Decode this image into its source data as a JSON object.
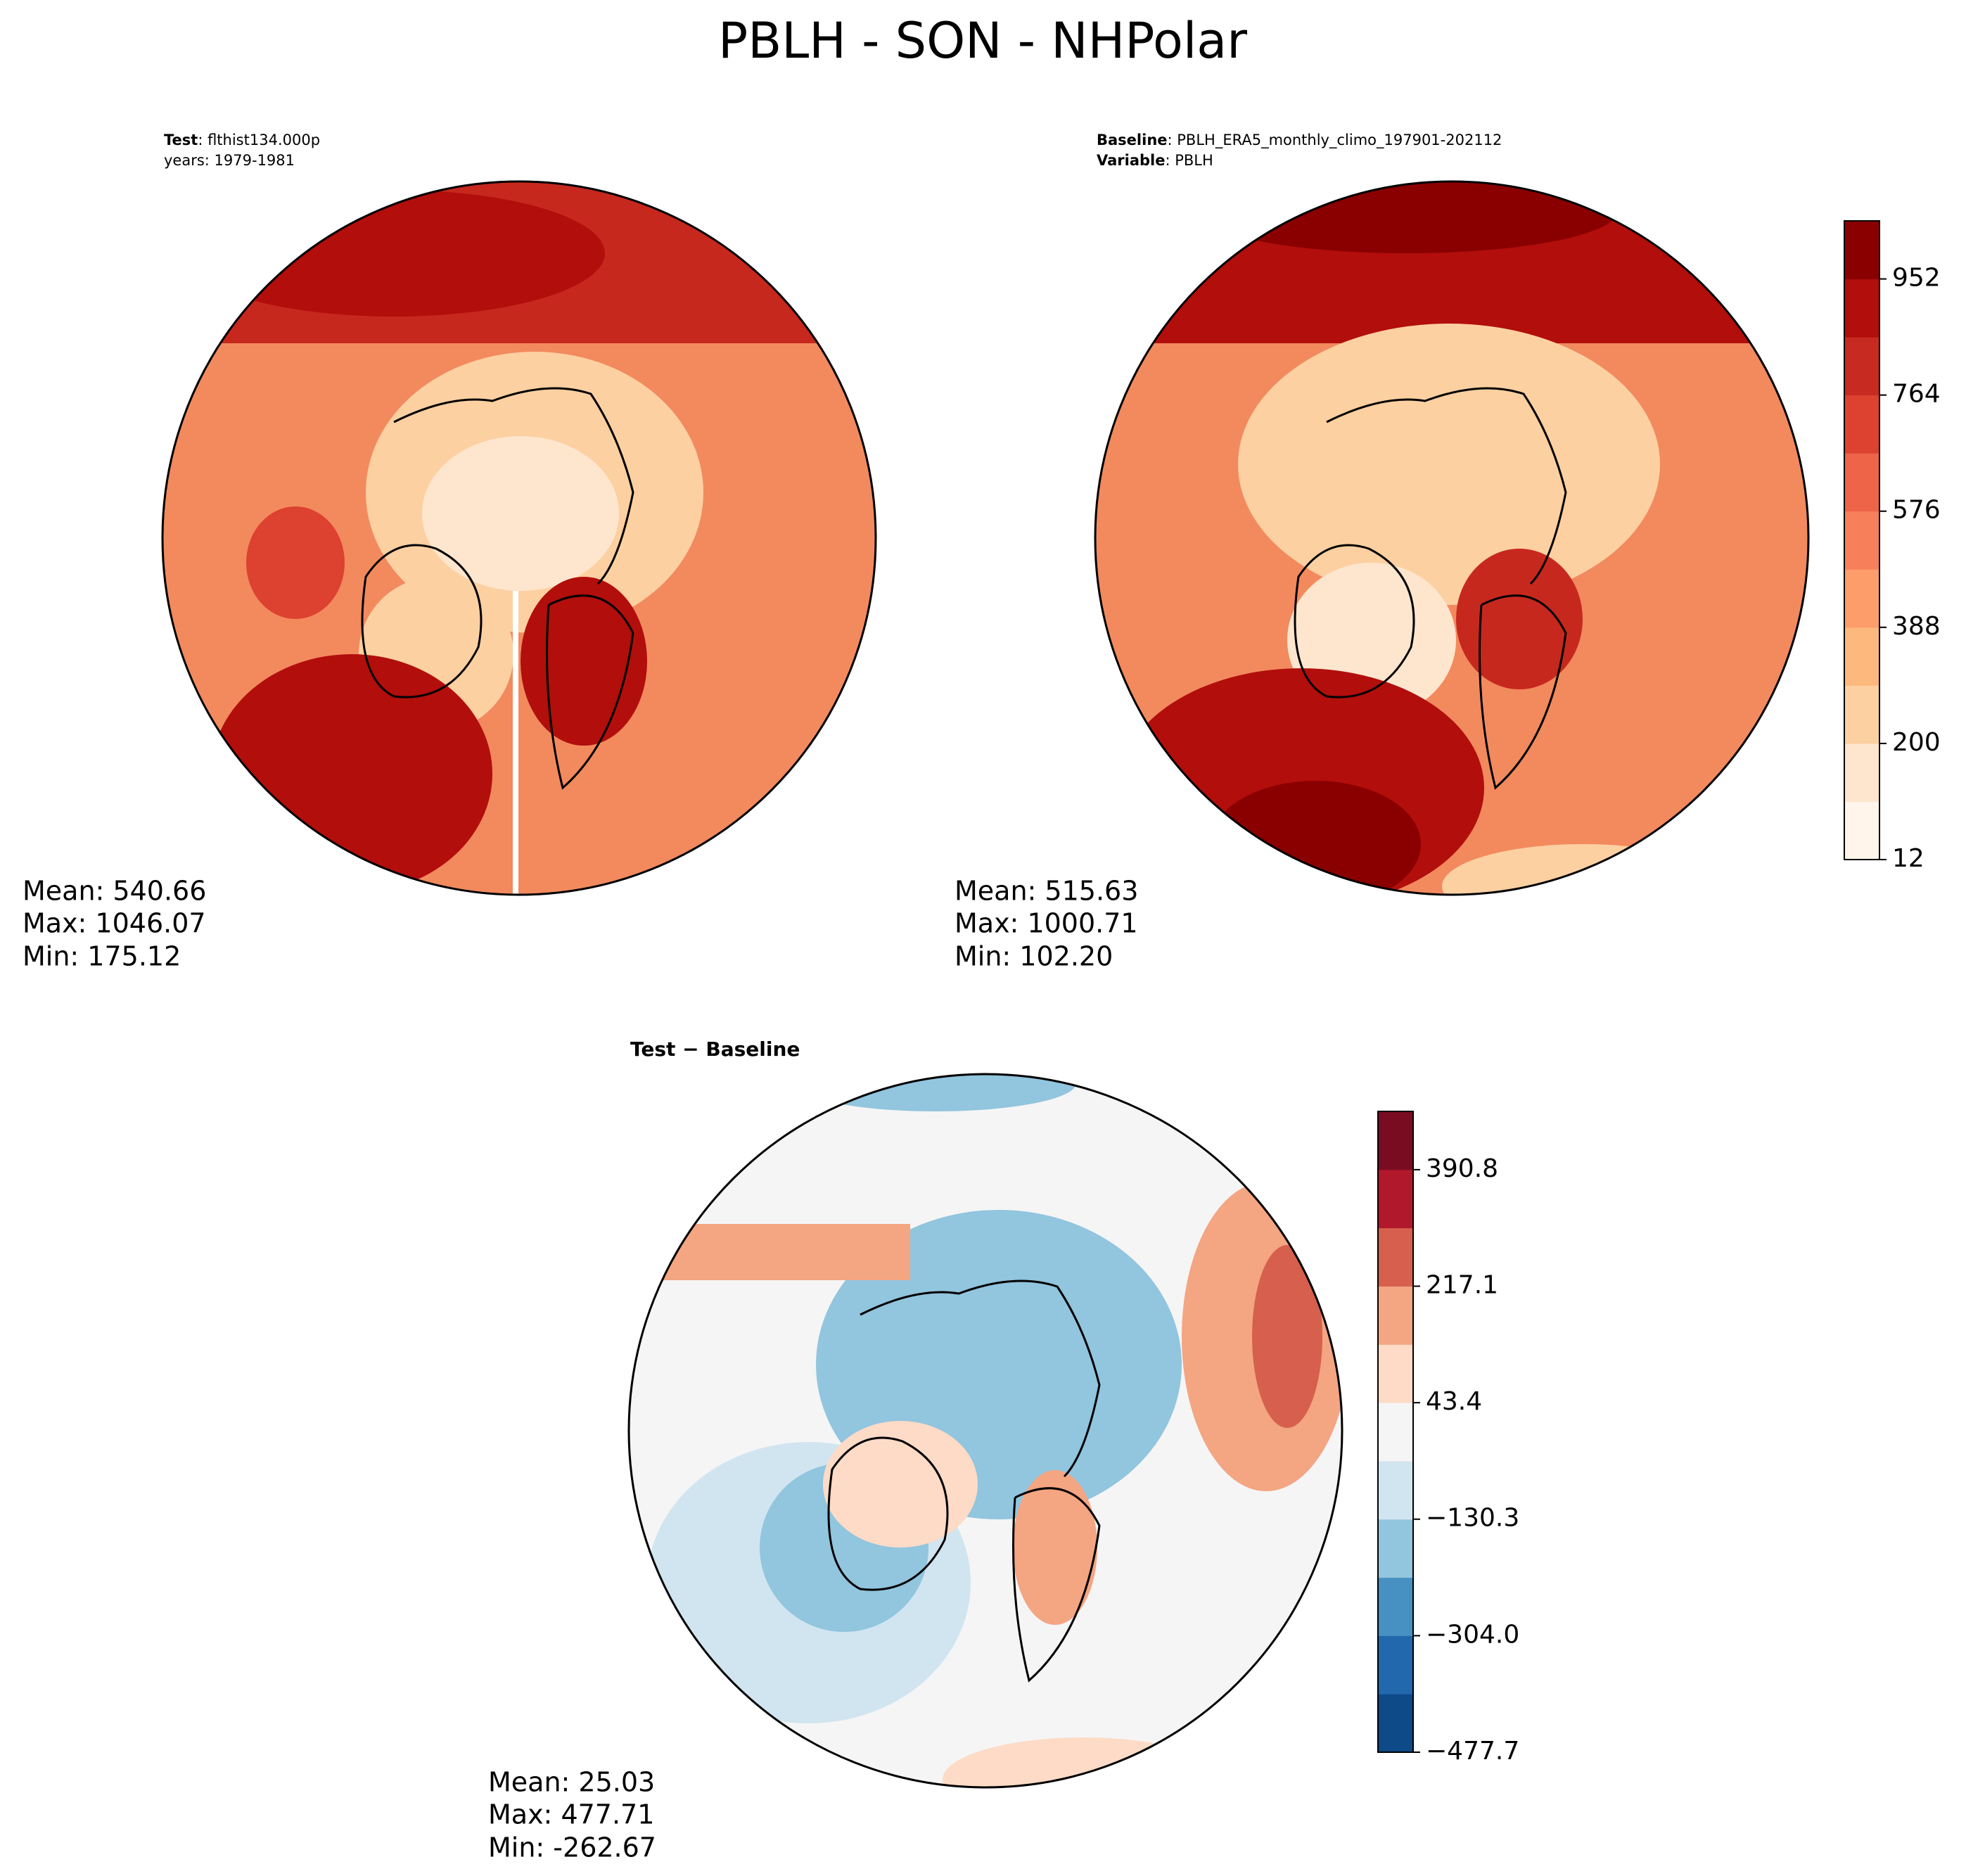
{
  "title": "PBLH - SON - NHPolar",
  "panels": [
    {
      "header": [
        {
          "key": "Test",
          "text": ": flthist134.000p"
        },
        {
          "key": "",
          "text": "years: 1979-1981"
        }
      ],
      "stats": [
        "Mean: 540.66",
        "Max: 1046.07",
        "Min: 175.12"
      ]
    },
    {
      "header": [
        {
          "key": "Baseline",
          "text": ": PBLH_ERA5_monthly_climo_197901-202112"
        },
        {
          "key": "Variable",
          "text": ": PBLH"
        }
      ],
      "stats": [
        "Mean: 515.63",
        "Max: 1000.71",
        "Min: 102.20"
      ]
    },
    {
      "header": [
        {
          "key": "Test − Baseline",
          "text": ""
        }
      ],
      "stats": [
        "Mean: 25.03",
        "Max: 477.71",
        "Min: -262.67"
      ]
    }
  ],
  "colorbars": [
    {
      "lim": [
        12,
        1046
      ],
      "ticks": [
        12,
        200,
        388,
        576,
        764,
        952
      ],
      "colors": [
        "#fff5eb",
        "#fee6ce",
        "#fdd0a2",
        "#fdb97d",
        "#fc9d6a",
        "#f7805a",
        "#ed6448",
        "#dd4130",
        "#c72a20",
        "#b20e0c",
        "#8a0000"
      ]
    },
    {
      "lim": [
        -477.7,
        477.7
      ],
      "ticks": [
        {
          "value": -477.7,
          "label": "−477.7"
        },
        {
          "value": -304.0,
          "label": "−304.0"
        },
        {
          "value": -130.3,
          "label": "−130.3"
        },
        43.4,
        217.1,
        390.8
      ],
      "colors": [
        "#0d4a87",
        "#2268ad",
        "#4690c2",
        "#92c5de",
        "#d1e5f0",
        "#f5f5f5",
        "#fddbc7",
        "#f4a582",
        "#d6604d",
        "#b2182b",
        "#7a0c22"
      ]
    }
  ]
}
